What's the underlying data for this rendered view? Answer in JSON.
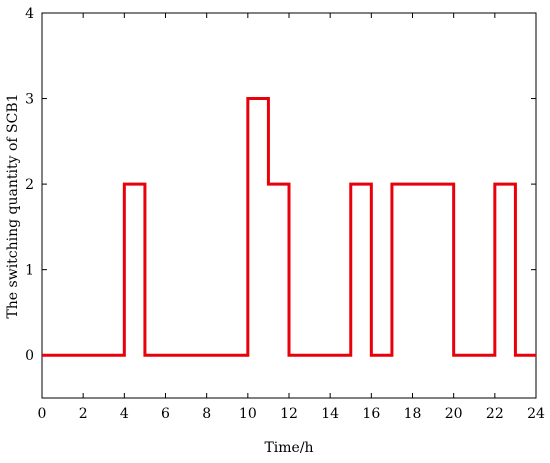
{
  "chart_data": {
    "type": "line",
    "step": true,
    "xlabel": "Time/h",
    "ylabel": "The switching quantity of SCB1",
    "xlim": [
      0,
      24
    ],
    "ylim": [
      -0.5,
      4
    ],
    "xticks": [
      0,
      2,
      4,
      6,
      8,
      10,
      12,
      14,
      16,
      18,
      20,
      22,
      24
    ],
    "yticks": [
      0,
      1,
      2,
      3,
      4
    ],
    "grid": false,
    "series": [
      {
        "color": "#e8000b",
        "x": [
          0,
          1,
          2,
          3,
          4,
          5,
          6,
          7,
          8,
          9,
          10,
          11,
          12,
          13,
          14,
          15,
          16,
          17,
          18,
          19,
          20,
          21,
          22,
          23,
          24
        ],
        "values": [
          0,
          0,
          0,
          0,
          2,
          0,
          0,
          0,
          0,
          0,
          3,
          2,
          0,
          0,
          0,
          2,
          0,
          2,
          2,
          2,
          0,
          0,
          2,
          0,
          0
        ]
      }
    ]
  }
}
